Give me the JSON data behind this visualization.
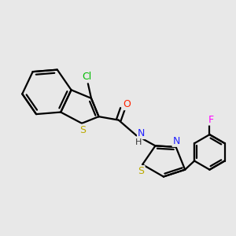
{
  "background_color": "#e8e8e8",
  "bond_color": "#000000",
  "atom_label_colors": {
    "Cl": "#00bb00",
    "O": "#ff2200",
    "N": "#2222ff",
    "H": "#333333",
    "S": "#bbaa00",
    "F": "#ff00ff"
  },
  "line_width": 1.6,
  "font_size": 9
}
